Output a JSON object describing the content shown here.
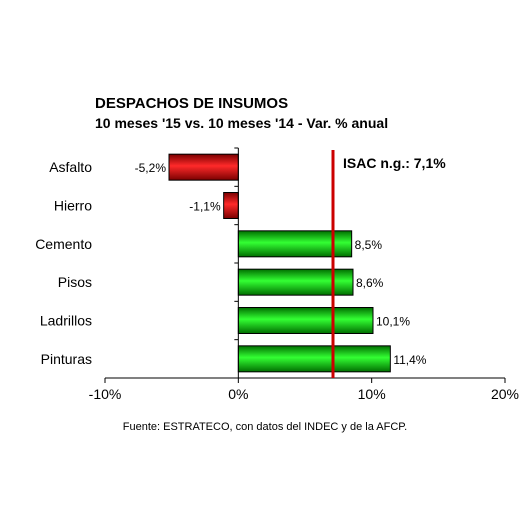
{
  "chart_data": {
    "type": "bar",
    "orientation": "horizontal",
    "title": "DESPACHOS DE INSUMOS",
    "subtitle": "10 meses '15 vs. 10 meses '14 - Var. % anual",
    "categories": [
      "Asfalto",
      "Hierro",
      "Cemento",
      "Pisos",
      "Ladrillos",
      "Pinturas"
    ],
    "values": [
      -5.2,
      -1.1,
      8.5,
      8.6,
      10.1,
      11.4
    ],
    "value_labels": [
      "-5,2%",
      "-1,1%",
      "8,5%",
      "8,6%",
      "10,1%",
      "11,4%"
    ],
    "xlim": [
      -10,
      20
    ],
    "x_ticks": [
      -10,
      0,
      10,
      20
    ],
    "x_tick_labels": [
      "-10%",
      "0%",
      "10%",
      "20%"
    ],
    "grid": false,
    "legend": "none",
    "colors": {
      "positive": "#00c800",
      "negative": "#cc0000",
      "reference_line": "#cc0000"
    },
    "reference_line": {
      "value": 7.1,
      "label": "ISAC n.g.: 7,1%"
    },
    "source": "Fuente: ESTRATECO, con datos del INDEC y de la AFCP."
  }
}
